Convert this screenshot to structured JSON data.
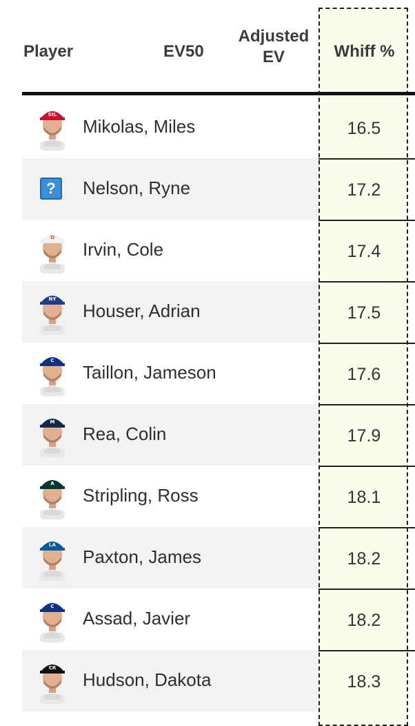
{
  "header": {
    "player": "Player",
    "ev50": "EV50",
    "adjusted_line1": "Adjusted",
    "adjusted_line2": "EV",
    "whiff": "Whiff %"
  },
  "colors": {
    "highlight_column": "#fcfcec",
    "alt_row": "#f2f2f2",
    "rule": "#111111"
  },
  "rows": [
    {
      "name": "Mikolas, Miles",
      "whiff": "16.5",
      "cap": "#c8102e",
      "capText": "StL",
      "avatar": "photo"
    },
    {
      "name": "Nelson, Ryne",
      "whiff": "17.2",
      "cap": "",
      "capText": "?",
      "avatar": "unknown"
    },
    {
      "name": "Irvin, Cole",
      "whiff": "17.4",
      "cap": "#f0f0f0",
      "capText": "O",
      "avatar": "photo"
    },
    {
      "name": "Houser, Adrian",
      "whiff": "17.5",
      "cap": "#1d3e84",
      "capText": "NY",
      "avatar": "photo"
    },
    {
      "name": "Taillon, Jameson",
      "whiff": "17.6",
      "cap": "#0e3386",
      "capText": "C",
      "avatar": "photo"
    },
    {
      "name": "Rea, Colin",
      "whiff": "17.9",
      "cap": "#13294b",
      "capText": "M",
      "avatar": "photo"
    },
    {
      "name": "Stripling, Ross",
      "whiff": "18.1",
      "cap": "#003831",
      "capText": "A",
      "avatar": "photo"
    },
    {
      "name": "Paxton, James",
      "whiff": "18.2",
      "cap": "#005a9c",
      "capText": "LA",
      "avatar": "photo"
    },
    {
      "name": "Assad, Javier",
      "whiff": "18.2",
      "cap": "#0e3386",
      "capText": "C",
      "avatar": "photo"
    },
    {
      "name": "Hudson, Dakota",
      "whiff": "18.3",
      "cap": "#111111",
      "capText": "CR",
      "avatar": "photo"
    }
  ]
}
